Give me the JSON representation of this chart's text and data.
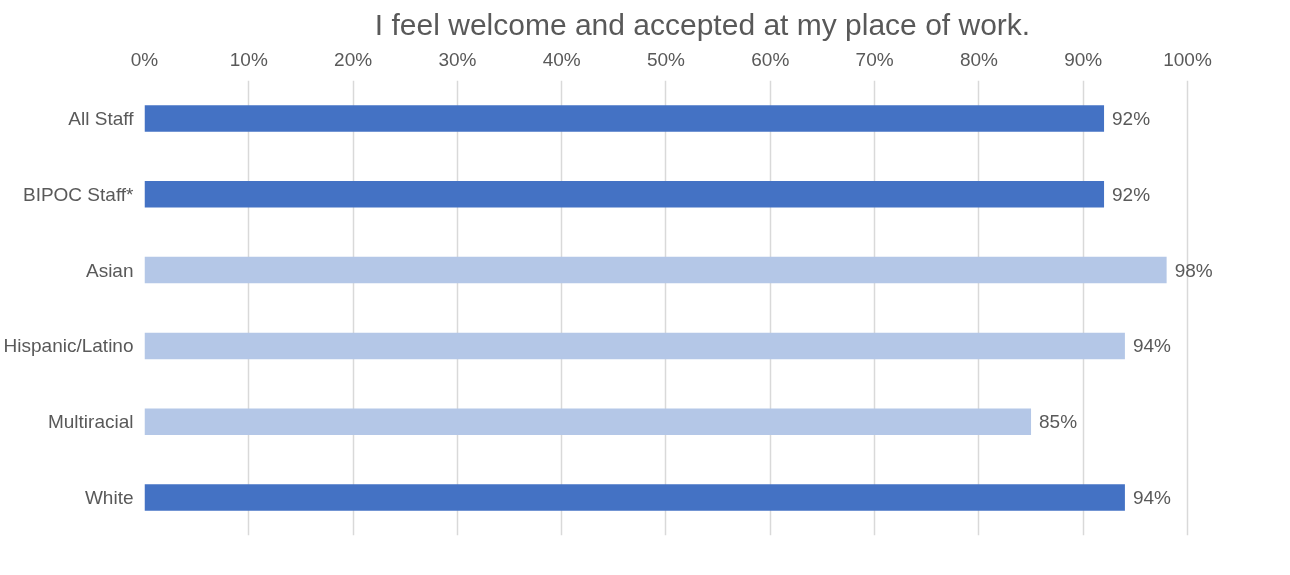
{
  "chart_data": {
    "type": "bar",
    "orientation": "horizontal",
    "title": "I feel welcome and accepted at my place of work.",
    "categories": [
      "All Staff",
      "BIPOC Staff*",
      "Asian",
      "Hispanic/Latino",
      "Multiracial",
      "White"
    ],
    "values": [
      92,
      92,
      98,
      94,
      85,
      94
    ],
    "colors": [
      "#4472c4",
      "#4472c4",
      "#b4c7e7",
      "#b4c7e7",
      "#b4c7e7",
      "#4472c4"
    ],
    "value_labels": [
      "92%",
      "92%",
      "98%",
      "94%",
      "85%",
      "94%"
    ],
    "xlim": [
      0,
      100
    ],
    "xticks": [
      {
        "value": 0,
        "label": "0%"
      },
      {
        "value": 10,
        "label": "10%"
      },
      {
        "value": 20,
        "label": "20%"
      },
      {
        "value": 30,
        "label": "30%"
      },
      {
        "value": 40,
        "label": "40%"
      },
      {
        "value": 50,
        "label": "50%"
      },
      {
        "value": 60,
        "label": "60%"
      },
      {
        "value": 70,
        "label": "70%"
      },
      {
        "value": 80,
        "label": "80%"
      },
      {
        "value": 90,
        "label": "90%"
      },
      {
        "value": 100,
        "label": "100%"
      }
    ],
    "grid": "x"
  }
}
